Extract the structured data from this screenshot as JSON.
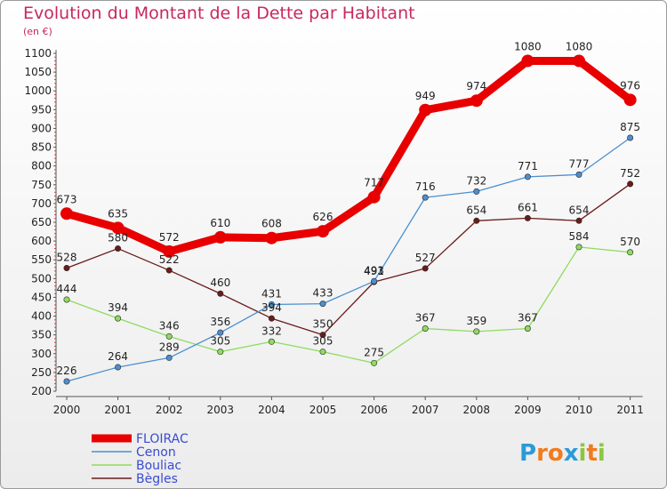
{
  "chart_data": {
    "type": "line",
    "title": "Evolution du Montant de la Dette par Habitant",
    "unit": "(en €)",
    "x": [
      "2000",
      "2001",
      "2002",
      "2003",
      "2004",
      "2005",
      "2006",
      "2007",
      "2008",
      "2009",
      "2010",
      "2011"
    ],
    "ylim": [
      200,
      1100
    ],
    "yticks": [
      200,
      250,
      300,
      350,
      400,
      450,
      500,
      550,
      600,
      650,
      700,
      750,
      800,
      850,
      900,
      950,
      1000,
      1050,
      1100
    ],
    "grid": false,
    "legend_position": "bottom-left",
    "series": [
      {
        "name": "FLOIRAC",
        "color": "#e80000",
        "values": [
          673,
          635,
          572,
          610,
          608,
          626,
          717,
          949,
          974,
          1080,
          1080,
          976
        ]
      },
      {
        "name": "Cenon",
        "color": "#4a8fd1",
        "values": [
          226,
          264,
          289,
          356,
          431,
          433,
          493,
          716,
          732,
          771,
          777,
          875
        ]
      },
      {
        "name": "Bouliac",
        "color": "#8fdb5e",
        "values": [
          444,
          394,
          346,
          305,
          332,
          305,
          275,
          367,
          359,
          367,
          584,
          570
        ]
      },
      {
        "name": "Bègles",
        "color": "#6b1b1b",
        "values": [
          528,
          580,
          522,
          460,
          394,
          350,
          491,
          527,
          654,
          661,
          654,
          752
        ]
      }
    ]
  },
  "brand": {
    "letters": [
      {
        "ch": "P",
        "color": "#2a9bd8"
      },
      {
        "ch": "r",
        "color": "#f07c1e"
      },
      {
        "ch": "o",
        "color": "#f07c1e"
      },
      {
        "ch": "x",
        "color": "#2a9bd8"
      },
      {
        "ch": "i",
        "color": "#8cc63f"
      },
      {
        "ch": "t",
        "color": "#f07c1e"
      },
      {
        "ch": "i",
        "color": "#8cc63f"
      }
    ]
  }
}
